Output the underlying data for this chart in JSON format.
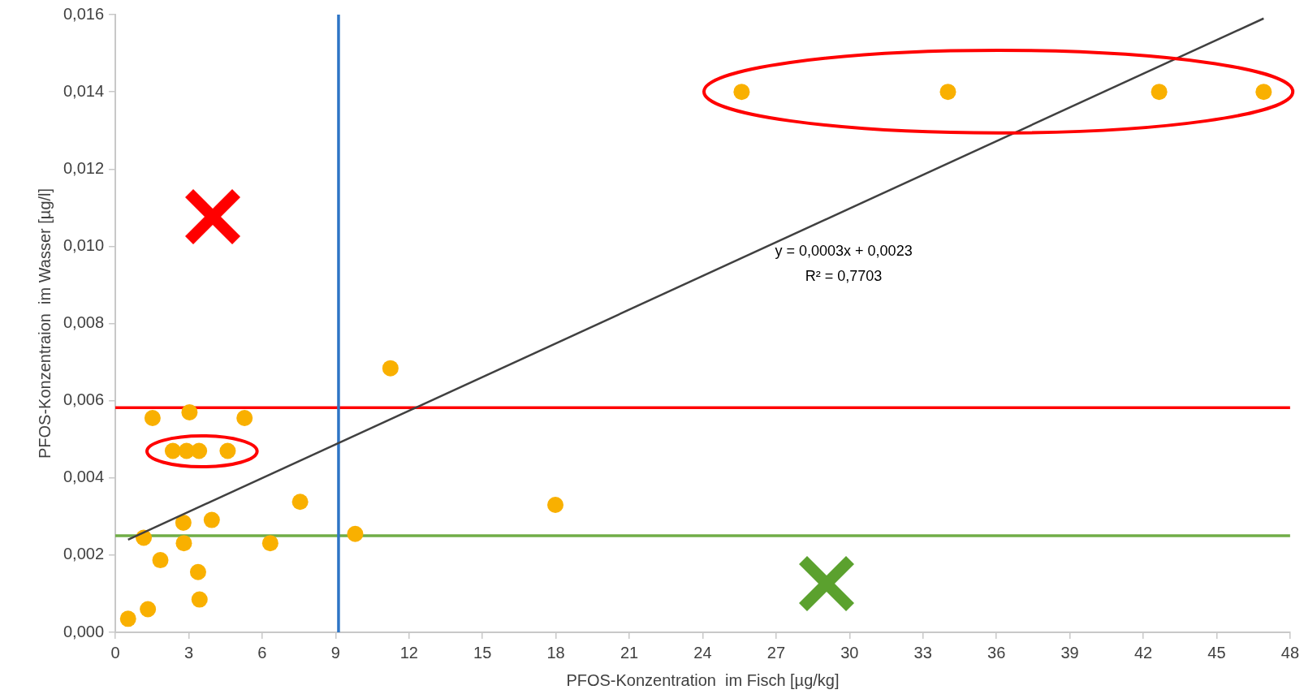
{
  "chart_data": {
    "type": "scatter",
    "xlabel": "PFOS-Konzentration  im Fisch [µg/kg]",
    "ylabel": "PFOS-Konzentraion  im Wasser [µg/l]",
    "xlim": [
      0,
      48
    ],
    "xticks": [
      0,
      3,
      6,
      9,
      12,
      15,
      18,
      21,
      24,
      27,
      30,
      33,
      36,
      39,
      42,
      45,
      48
    ],
    "ylim": [
      0,
      0.016
    ],
    "yticks": [
      {
        "value": 0,
        "label": "0,000"
      },
      {
        "value": 0.002,
        "label": "0,002"
      },
      {
        "value": 0.004,
        "label": "0,004"
      },
      {
        "value": 0.006,
        "label": "0,006"
      },
      {
        "value": 0.008,
        "label": "0,008"
      },
      {
        "value": 0.01,
        "label": "0,010"
      },
      {
        "value": 0.012,
        "label": "0,012"
      },
      {
        "value": 0.014,
        "label": "0,014"
      },
      {
        "value": 0.016,
        "label": "0,016"
      }
    ],
    "grid": false,
    "legend": false,
    "series": [
      {
        "marker": "circle",
        "color": "#f9b000",
        "x": [
          0.52,
          1.33,
          1.84,
          1.16,
          1.52,
          3.03,
          5.28,
          2.35,
          2.91,
          3.42,
          4.59,
          2.78,
          3.94,
          2.8,
          3.38,
          3.44,
          6.33,
          7.55,
          9.8,
          11.24,
          17.98,
          25.59,
          34.02,
          42.65,
          46.92
        ],
        "values": [
          0.00035,
          0.0006,
          0.00187,
          0.00245,
          0.00555,
          0.0057,
          0.00555,
          0.0047,
          0.0047,
          0.0047,
          0.0047,
          0.00284,
          0.00291,
          0.00231,
          0.00156,
          0.00085,
          0.00231,
          0.00338,
          0.00255,
          0.00684,
          0.0033,
          0.014,
          0.014,
          0.014,
          0.014
        ]
      },
      {
        "type": "line",
        "color": "#404040",
        "x": [
          0.52,
          46.92
        ],
        "values": [
          0.0024,
          0.0159
        ]
      }
    ],
    "ref_lines": [
      {
        "axis": "y",
        "value": 0.00582,
        "color": "#ff0000"
      },
      {
        "axis": "y",
        "value": 0.0025,
        "color": "#70ad47"
      },
      {
        "axis": "x",
        "value": 9.12,
        "color": "#2e75c6"
      }
    ],
    "annotations": [
      "y = 0,0003x + 0,0023",
      "R² = 0,7703"
    ]
  }
}
